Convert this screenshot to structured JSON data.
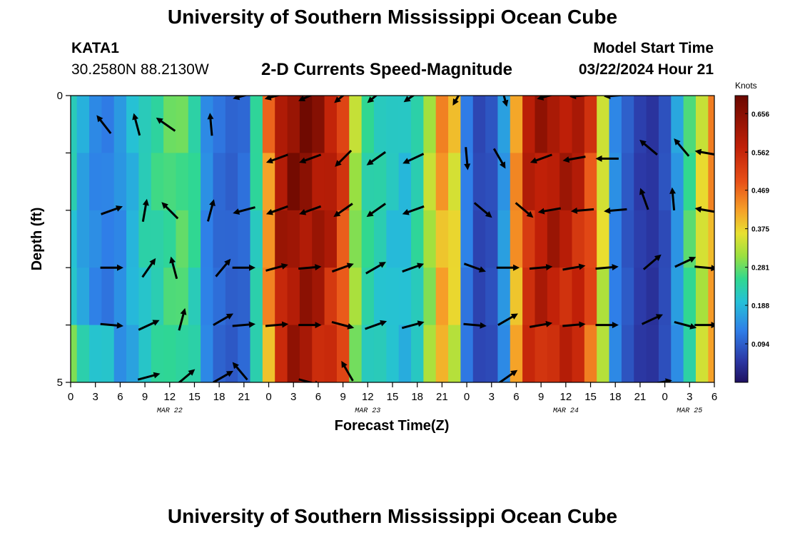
{
  "header": {
    "title": "University of Southern Mississippi Ocean Cube",
    "station_id": "KATA1",
    "location": "30.2580N  88.2130W",
    "chart_title": "2-D Currents Speed-Magnitude",
    "model_start_label": "Model Start Time",
    "model_start_value": "03/22/2024 Hour 21"
  },
  "footer": {
    "title": "University of Southern Mississippi Ocean Cube"
  },
  "chart_data": {
    "type": "heatmap",
    "title": "2-D Currents Speed-Magnitude",
    "xlabel": "Forecast Time(Z)",
    "ylabel": "Depth (ft)",
    "ylim": [
      0,
      5
    ],
    "y_ticks": [
      0,
      1,
      2,
      3,
      4,
      5
    ],
    "y_tick_labels": [
      "0",
      "",
      "",
      "",
      "",
      "5"
    ],
    "x_range_hours": [
      0,
      78
    ],
    "x_ticks": [
      "0",
      "3",
      "6",
      "9",
      "12",
      "15",
      "18",
      "21",
      "0",
      "3",
      "6",
      "9",
      "12",
      "15",
      "18",
      "21",
      "0",
      "3",
      "6",
      "9",
      "12",
      "15",
      "18",
      "21",
      "0",
      "3",
      "6"
    ],
    "date_labels": [
      {
        "label": "MAR 22",
        "at_hour": 12
      },
      {
        "label": "MAR 23",
        "at_hour": 36
      },
      {
        "label": "MAR 24",
        "at_hour": 60
      },
      {
        "label": "MAR 25",
        "at_hour": 75
      }
    ],
    "colorbar": {
      "unit": "Knots",
      "min": 0.0,
      "max": 0.7,
      "tick_labels": [
        "0.656",
        "0.562",
        "0.469",
        "0.375",
        "0.281",
        "0.188",
        "0.094"
      ],
      "tick_values": [
        0.656,
        0.562,
        0.469,
        0.375,
        0.281,
        0.188,
        0.094
      ]
    },
    "speed_profile": {
      "hours": [
        0,
        1.5,
        3,
        4.5,
        6,
        7.5,
        9,
        10.5,
        12,
        13.5,
        15,
        16.5,
        18,
        19.5,
        21,
        22.5,
        24,
        25.5,
        27,
        28.5,
        30,
        31.5,
        33,
        34.5,
        36,
        37.5,
        39,
        40.5,
        42,
        43.5,
        45,
        46.5,
        48,
        49.5,
        51,
        52.5,
        54,
        55.5,
        57,
        58.5,
        60,
        61.5,
        63,
        64.5,
        66,
        67.5,
        69,
        70.5,
        72,
        73.5,
        75,
        76.5,
        78
      ],
      "speeds": [
        0.22,
        0.17,
        0.14,
        0.13,
        0.15,
        0.19,
        0.23,
        0.25,
        0.27,
        0.28,
        0.25,
        0.14,
        0.11,
        0.1,
        0.11,
        0.24,
        0.45,
        0.62,
        0.66,
        0.66,
        0.64,
        0.6,
        0.52,
        0.32,
        0.25,
        0.23,
        0.21,
        0.2,
        0.24,
        0.33,
        0.43,
        0.38,
        0.13,
        0.07,
        0.08,
        0.16,
        0.44,
        0.58,
        0.61,
        0.62,
        0.61,
        0.59,
        0.52,
        0.36,
        0.14,
        0.09,
        0.06,
        0.05,
        0.08,
        0.16,
        0.27,
        0.36,
        0.44
      ]
    },
    "vectors": [
      {
        "hour": 4.0,
        "depth": 0.5,
        "angle_deg": 128,
        "length": 0.9
      },
      {
        "hour": 8.0,
        "depth": 0.5,
        "angle_deg": 105,
        "length": 0.9
      },
      {
        "hour": 11.5,
        "depth": 0.5,
        "angle_deg": 145,
        "length": 0.9
      },
      {
        "hour": 17.0,
        "depth": 0.5,
        "angle_deg": 95,
        "length": 0.9
      },
      {
        "hour": 21.0,
        "depth": 0.0,
        "angle_deg": 195,
        "length": 0.9
      },
      {
        "hour": 25.0,
        "depth": 0.0,
        "angle_deg": 195,
        "length": 1.0
      },
      {
        "hour": 29.0,
        "depth": 0.0,
        "angle_deg": 205,
        "length": 1.0
      },
      {
        "hour": 33.0,
        "depth": 0.0,
        "angle_deg": 220,
        "length": 0.9
      },
      {
        "hour": 37.0,
        "depth": 0.0,
        "angle_deg": 220,
        "length": 0.9
      },
      {
        "hour": 41.5,
        "depth": 0.0,
        "angle_deg": 215,
        "length": 0.9
      },
      {
        "hour": 47.0,
        "depth": 0.0,
        "angle_deg": 240,
        "length": 0.9
      },
      {
        "hour": 52.5,
        "depth": 0.0,
        "angle_deg": 285,
        "length": 0.9
      },
      {
        "hour": 58.0,
        "depth": 0.0,
        "angle_deg": 195,
        "length": 1.0
      },
      {
        "hour": 62.0,
        "depth": 0.0,
        "angle_deg": 185,
        "length": 1.0
      },
      {
        "hour": 66.0,
        "depth": 0.0,
        "angle_deg": 185,
        "length": 0.9
      },
      {
        "hour": 25.0,
        "depth": 1.1,
        "angle_deg": 200,
        "length": 0.9
      },
      {
        "hour": 29.0,
        "depth": 1.1,
        "angle_deg": 200,
        "length": 0.9
      },
      {
        "hour": 33.0,
        "depth": 1.1,
        "angle_deg": 225,
        "length": 0.9
      },
      {
        "hour": 37.0,
        "depth": 1.1,
        "angle_deg": 215,
        "length": 0.9
      },
      {
        "hour": 41.5,
        "depth": 1.1,
        "angle_deg": 205,
        "length": 0.9
      },
      {
        "hour": 48.0,
        "depth": 1.1,
        "angle_deg": 275,
        "length": 0.9
      },
      {
        "hour": 52.0,
        "depth": 1.1,
        "angle_deg": 300,
        "length": 0.9
      },
      {
        "hour": 57.0,
        "depth": 1.1,
        "angle_deg": 200,
        "length": 0.9
      },
      {
        "hour": 61.0,
        "depth": 1.1,
        "angle_deg": 190,
        "length": 0.9
      },
      {
        "hour": 65.0,
        "depth": 1.1,
        "angle_deg": 180,
        "length": 0.9
      },
      {
        "hour": 70.0,
        "depth": 0.9,
        "angle_deg": 140,
        "length": 0.9
      },
      {
        "hour": 74.0,
        "depth": 0.9,
        "angle_deg": 130,
        "length": 0.9
      },
      {
        "hour": 77.0,
        "depth": 1.0,
        "angle_deg": 170,
        "length": 0.9
      },
      {
        "hour": 5.0,
        "depth": 2.0,
        "angle_deg": 20,
        "length": 0.9
      },
      {
        "hour": 9.0,
        "depth": 2.0,
        "angle_deg": 80,
        "length": 0.9
      },
      {
        "hour": 12.0,
        "depth": 2.0,
        "angle_deg": 135,
        "length": 0.9
      },
      {
        "hour": 17.0,
        "depth": 2.0,
        "angle_deg": 75,
        "length": 0.9
      },
      {
        "hour": 21.0,
        "depth": 2.0,
        "angle_deg": 195,
        "length": 0.9
      },
      {
        "hour": 25.0,
        "depth": 2.0,
        "angle_deg": 200,
        "length": 0.9
      },
      {
        "hour": 29.0,
        "depth": 2.0,
        "angle_deg": 200,
        "length": 0.9
      },
      {
        "hour": 33.0,
        "depth": 2.0,
        "angle_deg": 215,
        "length": 0.9
      },
      {
        "hour": 37.0,
        "depth": 2.0,
        "angle_deg": 215,
        "length": 0.9
      },
      {
        "hour": 41.5,
        "depth": 2.0,
        "angle_deg": 200,
        "length": 0.9
      },
      {
        "hour": 50.0,
        "depth": 2.0,
        "angle_deg": 320,
        "length": 0.9
      },
      {
        "hour": 55.0,
        "depth": 2.0,
        "angle_deg": 320,
        "length": 0.9
      },
      {
        "hour": 58.0,
        "depth": 2.0,
        "angle_deg": 190,
        "length": 0.9
      },
      {
        "hour": 62.0,
        "depth": 2.0,
        "angle_deg": 185,
        "length": 0.9
      },
      {
        "hour": 66.0,
        "depth": 2.0,
        "angle_deg": 185,
        "length": 0.9
      },
      {
        "hour": 69.5,
        "depth": 1.8,
        "angle_deg": 110,
        "length": 0.9
      },
      {
        "hour": 73.0,
        "depth": 1.8,
        "angle_deg": 95,
        "length": 0.9
      },
      {
        "hour": 77.0,
        "depth": 2.0,
        "angle_deg": 170,
        "length": 0.9
      },
      {
        "hour": 5.0,
        "depth": 3.0,
        "angle_deg": 0,
        "length": 0.9
      },
      {
        "hour": 9.5,
        "depth": 3.0,
        "angle_deg": 55,
        "length": 0.9
      },
      {
        "hour": 12.5,
        "depth": 3.0,
        "angle_deg": 105,
        "length": 0.9
      },
      {
        "hour": 18.5,
        "depth": 3.0,
        "angle_deg": 50,
        "length": 0.9
      },
      {
        "hour": 21.0,
        "depth": 3.0,
        "angle_deg": 0,
        "length": 0.9
      },
      {
        "hour": 25.0,
        "depth": 3.0,
        "angle_deg": 15,
        "length": 0.9
      },
      {
        "hour": 29.0,
        "depth": 3.0,
        "angle_deg": 5,
        "length": 0.9
      },
      {
        "hour": 33.0,
        "depth": 3.0,
        "angle_deg": 20,
        "length": 0.9
      },
      {
        "hour": 37.0,
        "depth": 3.0,
        "angle_deg": 30,
        "length": 0.9
      },
      {
        "hour": 41.5,
        "depth": 3.0,
        "angle_deg": 20,
        "length": 0.9
      },
      {
        "hour": 49.0,
        "depth": 3.0,
        "angle_deg": 340,
        "length": 0.9
      },
      {
        "hour": 53.0,
        "depth": 3.0,
        "angle_deg": 0,
        "length": 0.9
      },
      {
        "hour": 57.0,
        "depth": 3.0,
        "angle_deg": 5,
        "length": 0.9
      },
      {
        "hour": 61.0,
        "depth": 3.0,
        "angle_deg": 10,
        "length": 0.9
      },
      {
        "hour": 65.0,
        "depth": 3.0,
        "angle_deg": 5,
        "length": 0.9
      },
      {
        "hour": 70.5,
        "depth": 2.9,
        "angle_deg": 40,
        "length": 0.9
      },
      {
        "hour": 74.5,
        "depth": 2.9,
        "angle_deg": 25,
        "length": 0.9
      },
      {
        "hour": 77.0,
        "depth": 3.0,
        "angle_deg": 355,
        "length": 0.9
      },
      {
        "hour": 5.0,
        "depth": 4.0,
        "angle_deg": 355,
        "length": 0.9
      },
      {
        "hour": 9.5,
        "depth": 4.0,
        "angle_deg": 25,
        "length": 0.9
      },
      {
        "hour": 13.5,
        "depth": 3.9,
        "angle_deg": 75,
        "length": 0.9
      },
      {
        "hour": 18.5,
        "depth": 3.9,
        "angle_deg": 30,
        "length": 0.9
      },
      {
        "hour": 21.0,
        "depth": 4.0,
        "angle_deg": 5,
        "length": 0.9
      },
      {
        "hour": 25.0,
        "depth": 4.0,
        "angle_deg": 5,
        "length": 0.9
      },
      {
        "hour": 29.0,
        "depth": 4.0,
        "angle_deg": 0,
        "length": 0.9
      },
      {
        "hour": 33.0,
        "depth": 4.0,
        "angle_deg": 345,
        "length": 0.9
      },
      {
        "hour": 37.0,
        "depth": 4.0,
        "angle_deg": 20,
        "length": 0.9
      },
      {
        "hour": 41.5,
        "depth": 4.0,
        "angle_deg": 15,
        "length": 0.9
      },
      {
        "hour": 49.0,
        "depth": 4.0,
        "angle_deg": 355,
        "length": 0.9
      },
      {
        "hour": 53.0,
        "depth": 3.9,
        "angle_deg": 30,
        "length": 0.9
      },
      {
        "hour": 57.0,
        "depth": 4.0,
        "angle_deg": 10,
        "length": 0.9
      },
      {
        "hour": 61.0,
        "depth": 4.0,
        "angle_deg": 5,
        "length": 0.9
      },
      {
        "hour": 65.0,
        "depth": 4.0,
        "angle_deg": 0,
        "length": 0.9
      },
      {
        "hour": 70.5,
        "depth": 3.9,
        "angle_deg": 25,
        "length": 0.9
      },
      {
        "hour": 74.5,
        "depth": 4.0,
        "angle_deg": 345,
        "length": 0.9
      },
      {
        "hour": 77.0,
        "depth": 4.0,
        "angle_deg": 0,
        "length": 0.9
      },
      {
        "hour": 9.5,
        "depth": 4.9,
        "angle_deg": 15,
        "length": 0.9
      },
      {
        "hour": 14.0,
        "depth": 4.9,
        "angle_deg": 40,
        "length": 0.9
      },
      {
        "hour": 18.5,
        "depth": 4.9,
        "angle_deg": 30,
        "length": 0.9
      },
      {
        "hour": 20.5,
        "depth": 4.8,
        "angle_deg": 130,
        "length": 0.9
      },
      {
        "hour": 29.0,
        "depth": 5.0,
        "angle_deg": 345,
        "length": 0.9
      },
      {
        "hour": 33.5,
        "depth": 4.8,
        "angle_deg": 120,
        "length": 0.9
      },
      {
        "hour": 53.0,
        "depth": 4.9,
        "angle_deg": 35,
        "length": 0.9
      },
      {
        "hour": 71.5,
        "depth": 5.0,
        "angle_deg": 10,
        "length": 0.9
      }
    ]
  }
}
